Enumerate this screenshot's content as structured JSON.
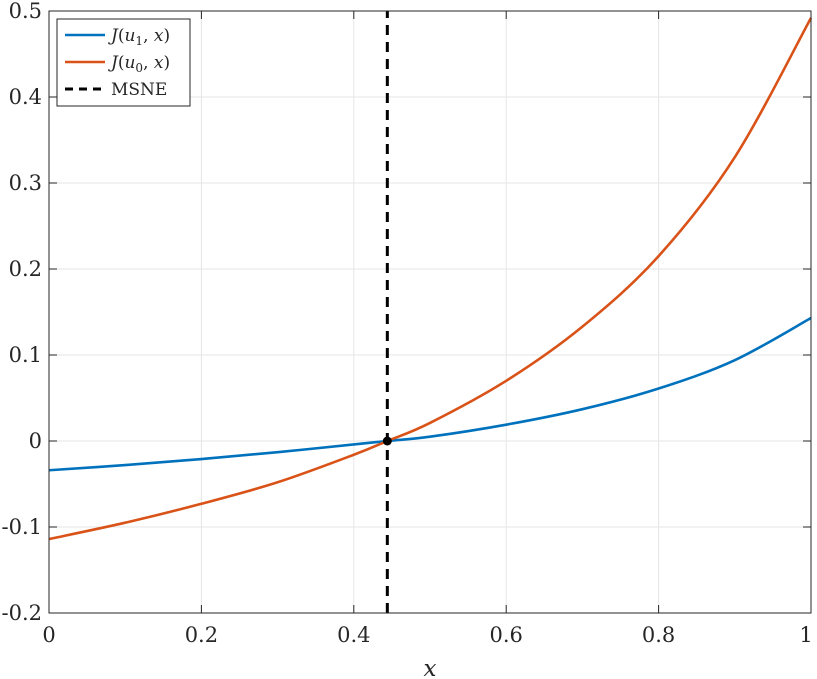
{
  "chart_data": {
    "type": "line",
    "xlabel": "x",
    "ylabel": "",
    "xlim": [
      0,
      1
    ],
    "ylim": [
      -0.2,
      0.5
    ],
    "grid": true,
    "x_ticks": [
      0,
      0.2,
      0.4,
      0.6,
      0.8,
      1
    ],
    "x_tick_labels": [
      "0",
      "0.2",
      "0.4",
      "0.6",
      "0.8",
      "1"
    ],
    "y_ticks": [
      -0.2,
      -0.1,
      0,
      0.1,
      0.2,
      0.3,
      0.4,
      0.5
    ],
    "y_tick_labels": [
      "-0.2",
      "-0.1",
      "0",
      "0.1",
      "0.2",
      "0.3",
      "0.4",
      "0.5"
    ],
    "legend_position": "top-left",
    "series": [
      {
        "name": "J(u1, x)",
        "color": "#0072BD",
        "style": "solid",
        "x": [
          0,
          0.1,
          0.2,
          0.3,
          0.4,
          0.444,
          0.5,
          0.6,
          0.7,
          0.8,
          0.9,
          1.0
        ],
        "y": [
          -0.034,
          -0.028,
          -0.021,
          -0.013,
          -0.004,
          0.0,
          0.005,
          0.019,
          0.037,
          0.061,
          0.094,
          0.143
        ]
      },
      {
        "name": "J(u0, x)",
        "color": "#D95319",
        "style": "solid",
        "x": [
          0,
          0.1,
          0.2,
          0.3,
          0.4,
          0.444,
          0.5,
          0.6,
          0.7,
          0.8,
          0.9,
          1.0
        ],
        "y": [
          -0.114,
          -0.095,
          -0.073,
          -0.048,
          -0.016,
          0.0,
          0.021,
          0.07,
          0.133,
          0.215,
          0.33,
          0.492
        ]
      },
      {
        "name": "MSNE",
        "color": "#000000",
        "style": "dashed",
        "x": [
          0.444,
          0.444
        ],
        "y": [
          -0.2,
          0.5
        ]
      }
    ],
    "marker": {
      "x": 0.444,
      "y": 0.0,
      "color": "#000000"
    }
  }
}
